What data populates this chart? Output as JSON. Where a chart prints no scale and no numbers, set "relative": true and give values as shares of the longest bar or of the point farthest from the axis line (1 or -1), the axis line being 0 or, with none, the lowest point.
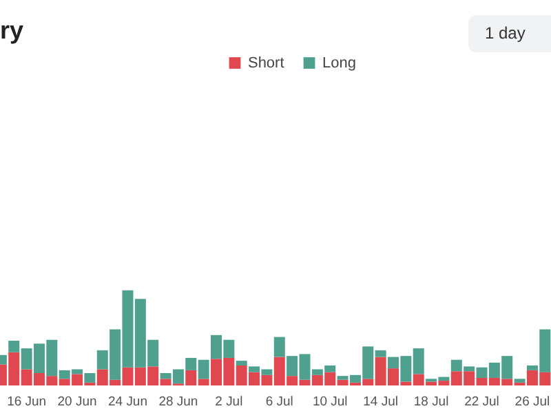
{
  "chart_data": {
    "type": "bar",
    "title": "ry",
    "annotations": [
      "1 day"
    ],
    "stacked": true,
    "relative": true,
    "legend": "top",
    "categories": [
      null,
      null,
      "16 Jun",
      null,
      null,
      null,
      "20 Jun",
      null,
      null,
      null,
      "24 Jun",
      null,
      null,
      null,
      "28 Jun",
      null,
      null,
      null,
      "2 Jul",
      null,
      null,
      null,
      "6 Jul",
      null,
      null,
      null,
      "10 Jul",
      null,
      null,
      null,
      "14 Jul",
      null,
      null,
      null,
      "18 Jul",
      null,
      null,
      null,
      "22 Jul",
      null,
      null,
      null,
      "26 Jul",
      null
    ],
    "series": [
      {
        "name": "Short",
        "color": "#e0474f",
        "values": [
          0.22,
          0.35,
          0.17,
          0.13,
          0.1,
          0.07,
          0.12,
          0.03,
          0.17,
          0.06,
          0.19,
          0.19,
          0.2,
          0.07,
          0.02,
          0.16,
          0.07,
          0.28,
          0.29,
          0.21,
          0.14,
          0.11,
          0.3,
          0.1,
          0.06,
          0.11,
          0.14,
          0.06,
          0.03,
          0.07,
          0.3,
          0.18,
          0.04,
          0.12,
          0.04,
          0.05,
          0.15,
          0.15,
          0.08,
          0.08,
          0.07,
          0.03,
          0.16,
          0.14
        ]
      },
      {
        "name": "Long",
        "color": "#4fa08e",
        "values": [
          0.1,
          0.12,
          0.22,
          0.31,
          0.38,
          0.09,
          0.05,
          0.1,
          0.2,
          0.53,
          0.81,
          0.72,
          0.28,
          0.06,
          0.15,
          0.13,
          0.2,
          0.25,
          0.19,
          0.05,
          0.06,
          0.06,
          0.21,
          0.21,
          0.27,
          0.06,
          0.07,
          0.04,
          0.08,
          0.34,
          0.07,
          0.12,
          0.27,
          0.27,
          0.03,
          0.04,
          0.12,
          0.05,
          0.11,
          0.16,
          0.24,
          0.04,
          0.05,
          0.45
        ]
      }
    ]
  }
}
